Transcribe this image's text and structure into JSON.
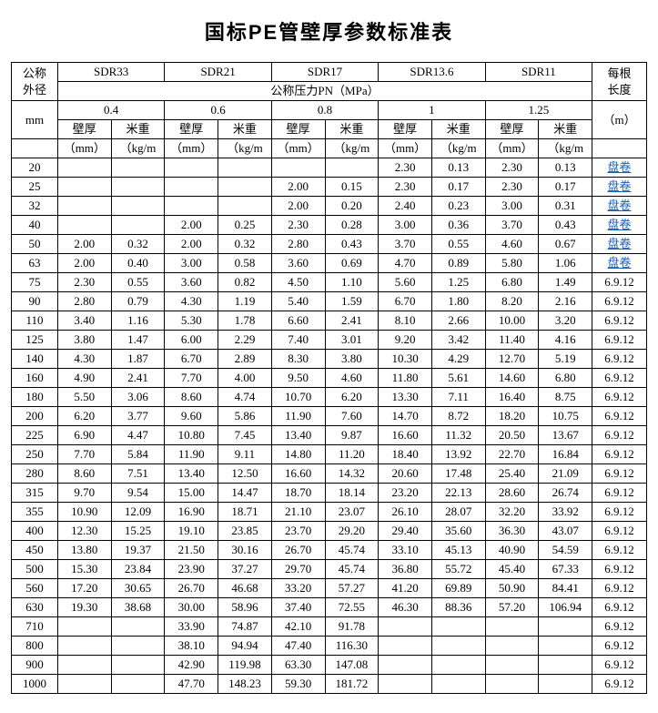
{
  "title": "国标PE管壁厚参数标准表",
  "header": {
    "dn_label_1": "公称",
    "dn_label_2": "外径",
    "dn_unit": "mm",
    "sdr": [
      "SDR33",
      "SDR21",
      "SDR17",
      "SDR13.6",
      "SDR11"
    ],
    "pn_label": "公称压力PN（MPa）",
    "pn_values": [
      "0.4",
      "0.6",
      "0.8",
      "1",
      "1.25"
    ],
    "sub_wall": "壁厚",
    "sub_weight": "米重",
    "unit_mm": "（mm）",
    "unit_kgm": "（kg/m",
    "length_1": "每根",
    "length_2": "长度",
    "length_unit": "（m）"
  },
  "rows": [
    {
      "dn": "20",
      "v": [
        "",
        "",
        "",
        "",
        "",
        "",
        "2.30",
        "0.13",
        "2.30",
        "0.13"
      ],
      "len": "盘卷",
      "link": true
    },
    {
      "dn": "25",
      "v": [
        "",
        "",
        "",
        "",
        "2.00",
        "0.15",
        "2.30",
        "0.17",
        "2.30",
        "0.17"
      ],
      "len": "盘卷",
      "link": true
    },
    {
      "dn": "32",
      "v": [
        "",
        "",
        "",
        "",
        "2.00",
        "0.20",
        "2.40",
        "0.23",
        "3.00",
        "0.31"
      ],
      "len": "盘卷",
      "link": true
    },
    {
      "dn": "40",
      "v": [
        "",
        "",
        "2.00",
        "0.25",
        "2.30",
        "0.28",
        "3.00",
        "0.36",
        "3.70",
        "0.43"
      ],
      "len": "盘卷",
      "link": true
    },
    {
      "dn": "50",
      "v": [
        "2.00",
        "0.32",
        "2.00",
        "0.32",
        "2.80",
        "0.43",
        "3.70",
        "0.55",
        "4.60",
        "0.67"
      ],
      "len": "盘卷",
      "link": true
    },
    {
      "dn": "63",
      "v": [
        "2.00",
        "0.40",
        "3.00",
        "0.58",
        "3.60",
        "0.69",
        "4.70",
        "0.89",
        "5.80",
        "1.06"
      ],
      "len": "盘卷",
      "link": true
    },
    {
      "dn": "75",
      "v": [
        "2.30",
        "0.55",
        "3.60",
        "0.82",
        "4.50",
        "1.10",
        "5.60",
        "1.25",
        "6.80",
        "1.49"
      ],
      "len": "6.9.12"
    },
    {
      "dn": "90",
      "v": [
        "2.80",
        "0.79",
        "4.30",
        "1.19",
        "5.40",
        "1.59",
        "6.70",
        "1.80",
        "8.20",
        "2.16"
      ],
      "len": "6.9.12"
    },
    {
      "dn": "110",
      "v": [
        "3.40",
        "1.16",
        "5.30",
        "1.78",
        "6.60",
        "2.41",
        "8.10",
        "2.66",
        "10.00",
        "3.20"
      ],
      "len": "6.9.12"
    },
    {
      "dn": "125",
      "v": [
        "3.80",
        "1.47",
        "6.00",
        "2.29",
        "7.40",
        "3.01",
        "9.20",
        "3.42",
        "11.40",
        "4.16"
      ],
      "len": "6.9.12"
    },
    {
      "dn": "140",
      "v": [
        "4.30",
        "1.87",
        "6.70",
        "2.89",
        "8.30",
        "3.80",
        "10.30",
        "4.29",
        "12.70",
        "5.19"
      ],
      "len": "6.9.12"
    },
    {
      "dn": "160",
      "v": [
        "4.90",
        "2.41",
        "7.70",
        "4.00",
        "9.50",
        "4.60",
        "11.80",
        "5.61",
        "14.60",
        "6.80"
      ],
      "len": "6.9.12"
    },
    {
      "dn": "180",
      "v": [
        "5.50",
        "3.06",
        "8.60",
        "4.74",
        "10.70",
        "6.20",
        "13.30",
        "7.11",
        "16.40",
        "8.75"
      ],
      "len": "6.9.12"
    },
    {
      "dn": "200",
      "v": [
        "6.20",
        "3.77",
        "9.60",
        "5.86",
        "11.90",
        "7.60",
        "14.70",
        "8.72",
        "18.20",
        "10.75"
      ],
      "len": "6.9.12"
    },
    {
      "dn": "225",
      "v": [
        "6.90",
        "4.47",
        "10.80",
        "7.45",
        "13.40",
        "9.87",
        "16.60",
        "11.32",
        "20.50",
        "13.67"
      ],
      "len": "6.9.12"
    },
    {
      "dn": "250",
      "v": [
        "7.70",
        "5.84",
        "11.90",
        "9.11",
        "14.80",
        "11.20",
        "18.40",
        "13.92",
        "22.70",
        "16.84"
      ],
      "len": "6.9.12"
    },
    {
      "dn": "280",
      "v": [
        "8.60",
        "7.51",
        "13.40",
        "12.50",
        "16.60",
        "14.32",
        "20.60",
        "17.48",
        "25.40",
        "21.09"
      ],
      "len": "6.9.12"
    },
    {
      "dn": "315",
      "v": [
        "9.70",
        "9.54",
        "15.00",
        "14.47",
        "18.70",
        "18.14",
        "23.20",
        "22.13",
        "28.60",
        "26.74"
      ],
      "len": "6.9.12"
    },
    {
      "dn": "355",
      "v": [
        "10.90",
        "12.09",
        "16.90",
        "18.71",
        "21.10",
        "23.07",
        "26.10",
        "28.07",
        "32.20",
        "33.92"
      ],
      "len": "6.9.12"
    },
    {
      "dn": "400",
      "v": [
        "12.30",
        "15.25",
        "19.10",
        "23.85",
        "23.70",
        "29.20",
        "29.40",
        "35.60",
        "36.30",
        "43.07"
      ],
      "len": "6.9.12"
    },
    {
      "dn": "450",
      "v": [
        "13.80",
        "19.37",
        "21.50",
        "30.16",
        "26.70",
        "45.74",
        "33.10",
        "45.13",
        "40.90",
        "54.59"
      ],
      "len": "6.9.12"
    },
    {
      "dn": "500",
      "v": [
        "15.30",
        "23.84",
        "23.90",
        "37.27",
        "29.70",
        "45.74",
        "36.80",
        "55.72",
        "45.40",
        "67.33"
      ],
      "len": "6.9.12"
    },
    {
      "dn": "560",
      "v": [
        "17.20",
        "30.65",
        "26.70",
        "46.68",
        "33.20",
        "57.27",
        "41.20",
        "69.89",
        "50.90",
        "84.41"
      ],
      "len": "6.9.12"
    },
    {
      "dn": "630",
      "v": [
        "19.30",
        "38.68",
        "30.00",
        "58.96",
        "37.40",
        "72.55",
        "46.30",
        "88.36",
        "57.20",
        "106.94"
      ],
      "len": "6.9.12"
    },
    {
      "dn": "710",
      "v": [
        "",
        "",
        "33.90",
        "74.87",
        "42.10",
        "91.78",
        "",
        "",
        "",
        ""
      ],
      "len": "6.9.12"
    },
    {
      "dn": "800",
      "v": [
        "",
        "",
        "38.10",
        "94.94",
        "47.40",
        "116.30",
        "",
        "",
        "",
        ""
      ],
      "len": "6.9.12"
    },
    {
      "dn": "900",
      "v": [
        "",
        "",
        "42.90",
        "119.98",
        "63.30",
        "147.08",
        "",
        "",
        "",
        ""
      ],
      "len": "6.9.12"
    },
    {
      "dn": "1000",
      "v": [
        "",
        "",
        "47.70",
        "148.23",
        "59.30",
        "181.72",
        "",
        "",
        "",
        ""
      ],
      "len": "6.9.12"
    }
  ]
}
